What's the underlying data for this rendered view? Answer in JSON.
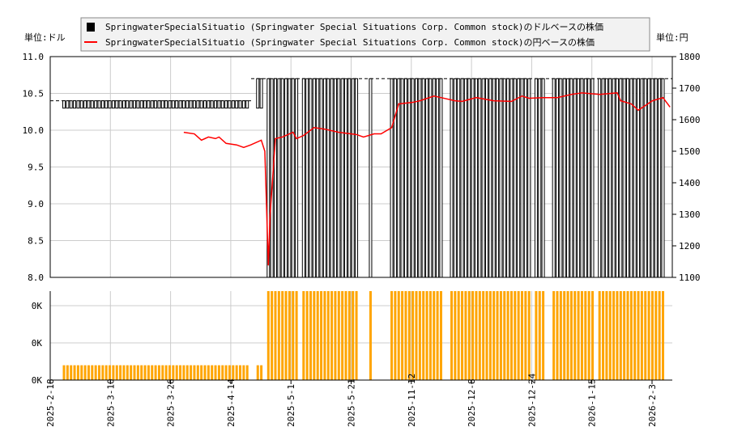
{
  "chart_data": [
    {
      "type": "candlestick+line",
      "legend": [
        "SpringwaterSpecialSituatio (Springwater Special Situations Corp. Common stock)のドルベースの株価",
        "SpringwaterSpecialSituatio (Springwater Special Situations Corp. Common stock)の円ベースの株価"
      ],
      "legend_placement": "top",
      "left_unit": "単位:ドル",
      "right_unit": "単位:円",
      "ylim_left": [
        8.0,
        11.0
      ],
      "yticks_left": [
        "8.0",
        "8.5",
        "9.0",
        "9.5",
        "10.0",
        "10.5",
        "11.0"
      ],
      "ylim_right": [
        1100,
        1800
      ],
      "yticks_right": [
        "1100",
        "1200",
        "1300",
        "1400",
        "1500",
        "1600",
        "1700",
        "1800"
      ],
      "grid": true,
      "colors": {
        "usd": "#000000",
        "jpy": "#ff0000"
      },
      "usd_candle_ranges": [
        {
          "slots": [
            0,
            52
          ],
          "low": 10.3,
          "high": 10.4
        },
        {
          "slots": [
            55,
            56
          ],
          "low": 10.3,
          "high": 10.7
        },
        {
          "slots": [
            58,
            66
          ],
          "low": 8.0,
          "high": 10.7
        },
        {
          "slots": [
            68,
            83
          ],
          "low": 8.0,
          "high": 10.7
        },
        {
          "slots": [
            87,
            87
          ],
          "low": 8.0,
          "high": 10.7
        },
        {
          "slots": [
            93,
            107
          ],
          "low": 8.0,
          "high": 10.7
        },
        {
          "slots": [
            110,
            132
          ],
          "low": 8.0,
          "high": 10.7
        },
        {
          "slots": [
            134,
            136
          ],
          "low": 8.0,
          "high": 10.7
        },
        {
          "slots": [
            139,
            150
          ],
          "low": 8.0,
          "high": 10.7
        },
        {
          "slots": [
            152,
            170
          ],
          "low": 8.0,
          "high": 10.7
        }
      ],
      "jpy_line": [
        [
          34,
          1560
        ],
        [
          37,
          1555
        ],
        [
          39,
          1535
        ],
        [
          41,
          1545
        ],
        [
          43,
          1540
        ],
        [
          44,
          1545
        ],
        [
          46,
          1525
        ],
        [
          49,
          1520
        ],
        [
          51,
          1512
        ],
        [
          53,
          1520
        ],
        [
          56,
          1535
        ],
        [
          57,
          1500
        ],
        [
          58,
          1138
        ],
        [
          58.5,
          1300
        ],
        [
          60,
          1540
        ],
        [
          62,
          1545
        ],
        [
          65,
          1560
        ],
        [
          66,
          1540
        ],
        [
          68,
          1550
        ],
        [
          71,
          1575
        ],
        [
          74,
          1570
        ],
        [
          78,
          1560
        ],
        [
          83,
          1553
        ],
        [
          85,
          1545
        ],
        [
          88,
          1555
        ],
        [
          90,
          1555
        ],
        [
          93,
          1575
        ],
        [
          95,
          1650
        ],
        [
          99,
          1655
        ],
        [
          101,
          1660
        ],
        [
          105,
          1675
        ],
        [
          107,
          1670
        ],
        [
          111,
          1660
        ],
        [
          113,
          1658
        ],
        [
          117,
          1670
        ],
        [
          122,
          1660
        ],
        [
          127,
          1658
        ],
        [
          130,
          1675
        ],
        [
          132,
          1668
        ],
        [
          136,
          1670
        ],
        [
          140,
          1670
        ],
        [
          144,
          1680
        ],
        [
          147,
          1685
        ],
        [
          152,
          1680
        ],
        [
          157,
          1685
        ],
        [
          158,
          1660
        ],
        [
          161,
          1650
        ],
        [
          163,
          1630
        ],
        [
          167,
          1660
        ],
        [
          170,
          1670
        ],
        [
          172,
          1640
        ]
      ]
    },
    {
      "type": "bar",
      "yticks": [
        "0K",
        "0K",
        "0K"
      ],
      "color": "#ffa500",
      "volume_ranges": [
        {
          "slots": [
            0,
            52
          ],
          "value": 0.4
        },
        {
          "slots": [
            55,
            56
          ],
          "value": 0.4
        },
        {
          "slots": [
            58,
            66
          ],
          "value": 2.4
        },
        {
          "slots": [
            68,
            83
          ],
          "value": 2.4
        },
        {
          "slots": [
            87,
            87
          ],
          "value": 2.4
        },
        {
          "slots": [
            93,
            107
          ],
          "value": 2.4
        },
        {
          "slots": [
            110,
            132
          ],
          "value": 2.4
        },
        {
          "slots": [
            134,
            136
          ],
          "value": 2.4
        },
        {
          "slots": [
            139,
            150
          ],
          "value": 2.4
        },
        {
          "slots": [
            152,
            170
          ],
          "value": 2.4
        }
      ],
      "ylim": [
        0,
        2.4
      ],
      "xticks": [
        "2025-2-18",
        "2025-3-10",
        "2025-3-26",
        "2025-4-14",
        "2025-5-1",
        "2025-5-21",
        "2025-11-12",
        "2025-12-8",
        "2025-12-24",
        "2026-1-15",
        "2026-2-3"
      ]
    }
  ]
}
